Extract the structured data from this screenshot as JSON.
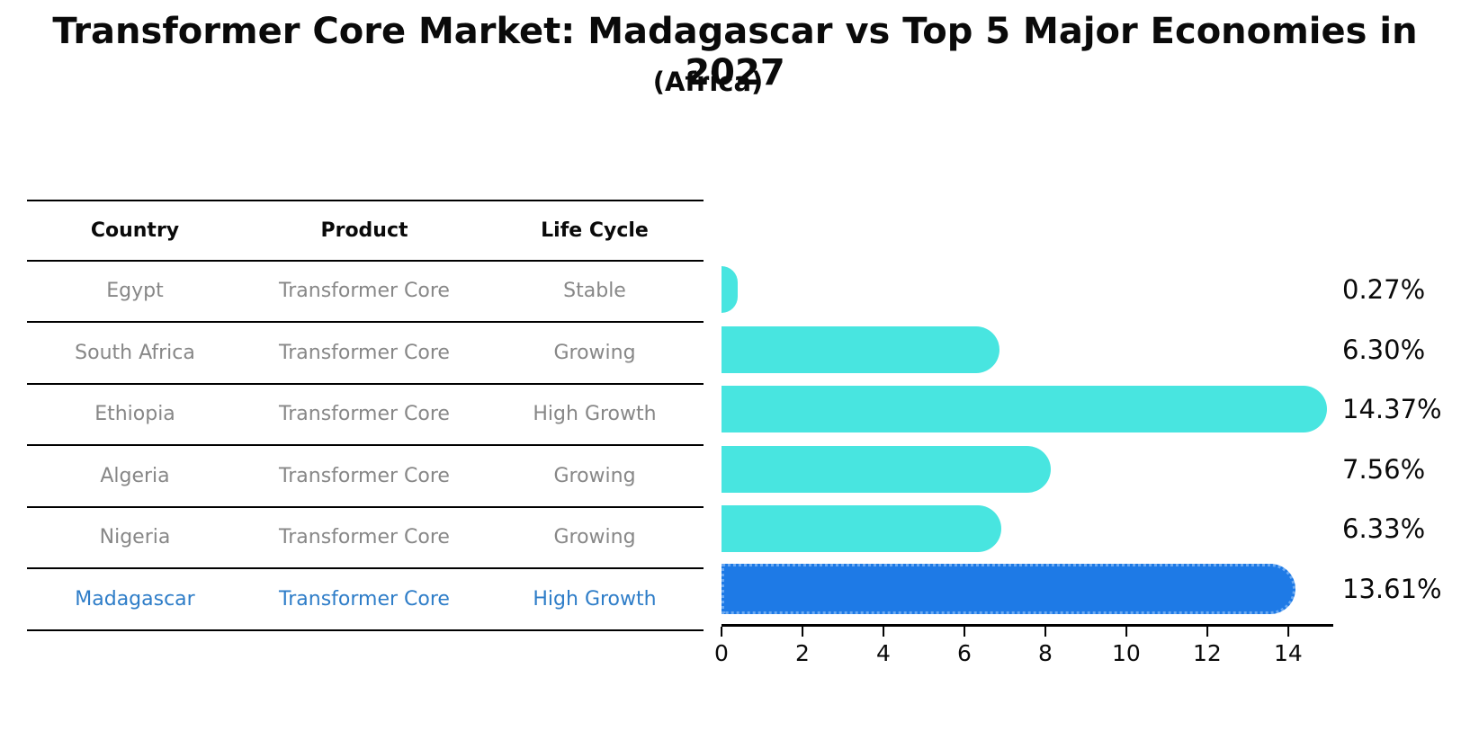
{
  "title": "Transformer Core Market: Madagascar vs Top 5 Major Economies in 2027",
  "subtitle": "(Africa)",
  "table": {
    "headers": [
      "Country",
      "Product",
      "Life Cycle"
    ],
    "rows": [
      {
        "country": "Egypt",
        "product": "Transformer Core",
        "life_cycle": "Stable",
        "highlighted": false
      },
      {
        "country": "South Africa",
        "product": "Transformer Core",
        "life_cycle": "Growing",
        "highlighted": false
      },
      {
        "country": "Ethiopia",
        "product": "Transformer Core",
        "life_cycle": "High Growth",
        "highlighted": false
      },
      {
        "country": "Algeria",
        "product": "Transformer Core",
        "life_cycle": "Growing",
        "highlighted": false
      },
      {
        "country": "Nigeria",
        "product": "Transformer Core",
        "life_cycle": "Growing",
        "highlighted": false
      },
      {
        "country": "Madagascar",
        "product": "Transformer Core",
        "life_cycle": "High Growth",
        "highlighted": true
      }
    ]
  },
  "chart_data": {
    "type": "bar",
    "orientation": "horizontal",
    "title": "Transformer Core Market: Madagascar vs Top 5 Major Economies in 2027",
    "subtitle": "(Africa)",
    "categories": [
      "Egypt",
      "South Africa",
      "Ethiopia",
      "Algeria",
      "Nigeria",
      "Madagascar"
    ],
    "values": [
      0.27,
      6.3,
      14.37,
      7.56,
      6.33,
      13.61
    ],
    "value_labels": [
      "0.27%",
      "6.30%",
      "14.37%",
      "7.56%",
      "6.33%",
      "13.61%"
    ],
    "xlabel": "",
    "ylabel": "",
    "xlim": [
      0,
      15.07
    ],
    "xticks": [
      0,
      2,
      4,
      6,
      8,
      10,
      12,
      14
    ],
    "xtick_labels": [
      "0",
      "2",
      "4",
      "6",
      "8",
      "10",
      "12",
      "14"
    ],
    "grid": false,
    "legend": "none",
    "bar_color": "#48e5e0",
    "highlight_color": "#1e7ae6",
    "highlight_edge_color": "#6aa9f2",
    "highlight_index": 5,
    "highlight_category": "Madagascar",
    "table_text_color": "#878787",
    "highlight_text_color": "#2e7dc8"
  }
}
